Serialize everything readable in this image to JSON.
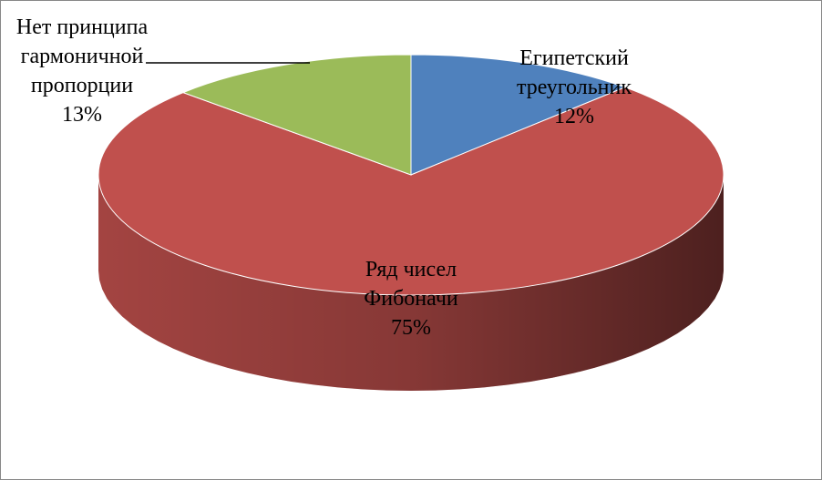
{
  "chart_data": {
    "type": "pie",
    "categories": [
      "Египетский треугольник",
      "Ряд чисел Фибоначи",
      "Нет принципа гармоничной пропорции"
    ],
    "values": [
      12,
      75,
      13
    ],
    "value_labels": [
      "12%",
      "75%",
      "13%"
    ],
    "colors": [
      "#4f81bd",
      "#c0504d",
      "#9bbb59"
    ]
  }
}
